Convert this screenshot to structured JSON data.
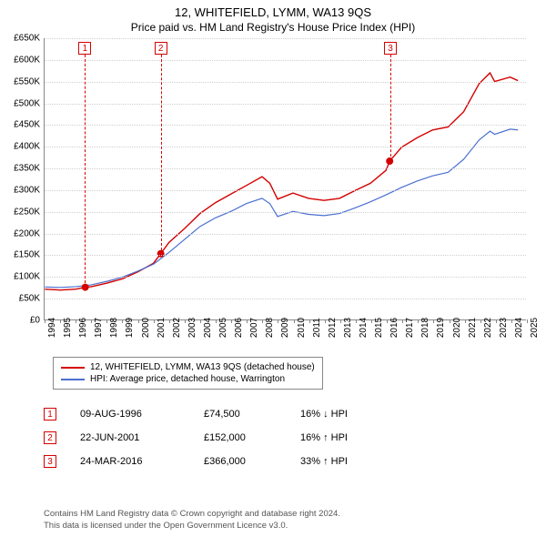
{
  "title": "12, WHITEFIELD, LYMM, WA13 9QS",
  "subtitle": "Price paid vs. HM Land Registry's House Price Index (HPI)",
  "chart": {
    "type": "line",
    "background_color": "#ffffff",
    "grid_color": "#d0d0d0",
    "axis_color": "#888888",
    "xlim": [
      1994,
      2025
    ],
    "xtick_step": 1,
    "ylim": [
      0,
      650000
    ],
    "ytick_step": 50000,
    "yticklabels": [
      "£0",
      "£50K",
      "£100K",
      "£150K",
      "£200K",
      "£250K",
      "£300K",
      "£350K",
      "£400K",
      "£450K",
      "£500K",
      "£550K",
      "£600K",
      "£650K"
    ],
    "xticklabels": [
      "1994",
      "1995",
      "1996",
      "1997",
      "1998",
      "1999",
      "2000",
      "2001",
      "2002",
      "2003",
      "2004",
      "2005",
      "2006",
      "2007",
      "2008",
      "2009",
      "2010",
      "2011",
      "2012",
      "2013",
      "2014",
      "2015",
      "2016",
      "2017",
      "2018",
      "2019",
      "2020",
      "2021",
      "2022",
      "2023",
      "2024",
      "2025"
    ],
    "label_fontsize": 10,
    "series": [
      {
        "name": "12, WHITEFIELD, LYMM, WA13 9QS (detached house)",
        "color": "#d40000",
        "line_width": 1.4,
        "data": [
          [
            1994,
            70000
          ],
          [
            1995,
            68000
          ],
          [
            1996,
            70000
          ],
          [
            1996.6,
            74500
          ],
          [
            1997,
            76000
          ],
          [
            1998,
            84000
          ],
          [
            1999,
            94000
          ],
          [
            2000,
            110000
          ],
          [
            2001,
            130000
          ],
          [
            2001.47,
            152000
          ],
          [
            2002,
            178000
          ],
          [
            2003,
            210000
          ],
          [
            2004,
            245000
          ],
          [
            2005,
            270000
          ],
          [
            2006,
            290000
          ],
          [
            2007,
            310000
          ],
          [
            2008,
            330000
          ],
          [
            2008.5,
            315000
          ],
          [
            2009,
            278000
          ],
          [
            2010,
            292000
          ],
          [
            2011,
            280000
          ],
          [
            2012,
            275000
          ],
          [
            2013,
            280000
          ],
          [
            2014,
            298000
          ],
          [
            2015,
            315000
          ],
          [
            2016,
            345000
          ],
          [
            2016.23,
            366000
          ],
          [
            2017,
            398000
          ],
          [
            2018,
            420000
          ],
          [
            2019,
            438000
          ],
          [
            2020,
            445000
          ],
          [
            2021,
            480000
          ],
          [
            2022,
            545000
          ],
          [
            2022.7,
            570000
          ],
          [
            2023,
            550000
          ],
          [
            2024,
            560000
          ],
          [
            2024.5,
            552000
          ]
        ]
      },
      {
        "name": "HPI: Average price, detached house, Warrington",
        "color": "#4a6fcf",
        "line_width": 1.2,
        "data": [
          [
            1994,
            75000
          ],
          [
            1995,
            74000
          ],
          [
            1996,
            76000
          ],
          [
            1997,
            80000
          ],
          [
            1998,
            88000
          ],
          [
            1999,
            98000
          ],
          [
            2000,
            112000
          ],
          [
            2001,
            128000
          ],
          [
            2002,
            155000
          ],
          [
            2003,
            185000
          ],
          [
            2004,
            215000
          ],
          [
            2005,
            235000
          ],
          [
            2006,
            250000
          ],
          [
            2007,
            268000
          ],
          [
            2008,
            280000
          ],
          [
            2008.5,
            268000
          ],
          [
            2009,
            238000
          ],
          [
            2010,
            250000
          ],
          [
            2011,
            243000
          ],
          [
            2012,
            240000
          ],
          [
            2013,
            245000
          ],
          [
            2014,
            258000
          ],
          [
            2015,
            272000
          ],
          [
            2016,
            288000
          ],
          [
            2017,
            305000
          ],
          [
            2018,
            320000
          ],
          [
            2019,
            332000
          ],
          [
            2020,
            340000
          ],
          [
            2021,
            370000
          ],
          [
            2022,
            415000
          ],
          [
            2022.7,
            435000
          ],
          [
            2023,
            428000
          ],
          [
            2024,
            440000
          ],
          [
            2024.5,
            438000
          ]
        ]
      }
    ],
    "markers": [
      {
        "n": "1",
        "year": 1996.6,
        "value": 74500,
        "color": "#d40000"
      },
      {
        "n": "2",
        "year": 2001.47,
        "value": 152000,
        "color": "#d40000"
      },
      {
        "n": "3",
        "year": 2016.23,
        "value": 366000,
        "color": "#d40000"
      }
    ]
  },
  "legend": {
    "items": [
      {
        "color": "#d40000",
        "label": "12, WHITEFIELD, LYMM, WA13 9QS (detached house)"
      },
      {
        "color": "#4a6fcf",
        "label": "HPI: Average price, detached house, Warrington"
      }
    ]
  },
  "transactions": [
    {
      "n": "1",
      "color": "#d40000",
      "date": "09-AUG-1996",
      "price": "£74,500",
      "diff": "16% ↓ HPI"
    },
    {
      "n": "2",
      "color": "#d40000",
      "date": "22-JUN-2001",
      "price": "£152,000",
      "diff": "16% ↑ HPI"
    },
    {
      "n": "3",
      "color": "#d40000",
      "date": "24-MAR-2016",
      "price": "£366,000",
      "diff": "33% ↑ HPI"
    }
  ],
  "footer": {
    "line1": "Contains HM Land Registry data © Crown copyright and database right 2024.",
    "line2": "This data is licensed under the Open Government Licence v3.0."
  }
}
